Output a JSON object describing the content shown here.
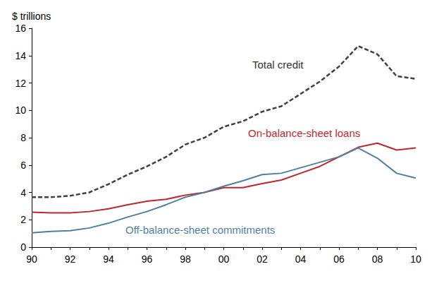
{
  "chart_data": {
    "type": "line",
    "y_label": "$ trillions",
    "categories": [
      "90",
      null,
      "92",
      null,
      "94",
      null,
      "96",
      null,
      "98",
      null,
      "00",
      null,
      "02",
      null,
      "04",
      null,
      "06",
      null,
      "08",
      null,
      "10"
    ],
    "series": [
      {
        "name": "Total credit",
        "color": "#404040",
        "line_style": "dashed",
        "marker": "none",
        "values": [
          3.65,
          3.65,
          3.75,
          4.0,
          4.6,
          5.3,
          5.9,
          6.6,
          7.5,
          8.0,
          8.8,
          9.2,
          9.9,
          10.3,
          11.2,
          12.1,
          13.2,
          14.7,
          14.1,
          12.5,
          12.3
        ]
      },
      {
        "name": "On-balance-sheet loans",
        "color": "#c0272d",
        "line_style": "solid",
        "marker": "none",
        "values": [
          2.55,
          2.5,
          2.5,
          2.6,
          2.8,
          3.1,
          3.35,
          3.5,
          3.8,
          4.0,
          4.35,
          4.35,
          4.65,
          4.9,
          5.4,
          5.9,
          6.6,
          7.3,
          7.6,
          7.1,
          7.25
        ]
      },
      {
        "name": "Off-balance-sheet commitments",
        "color": "#4f7fa0",
        "line_style": "solid",
        "marker": "none",
        "values": [
          1.05,
          1.15,
          1.2,
          1.4,
          1.75,
          2.2,
          2.6,
          3.1,
          3.65,
          4.0,
          4.45,
          4.85,
          5.3,
          5.4,
          5.8,
          6.2,
          6.6,
          7.25,
          6.5,
          5.4,
          5.05
        ]
      }
    ],
    "ylim": [
      0,
      16
    ],
    "yticks": [
      0,
      2,
      4,
      6,
      8,
      10,
      12,
      14,
      16
    ],
    "grid": false,
    "legend": "none"
  }
}
